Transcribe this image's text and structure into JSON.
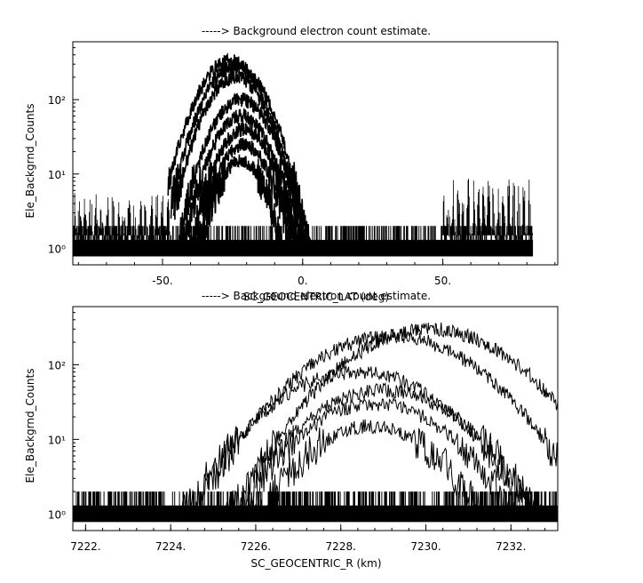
{
  "chart_data": [
    {
      "type": "line",
      "title": "-----> Background electron count estimate.",
      "xlabel": "SC_GEOCENTRIC_LAT (deg)",
      "ylabel": "Ele_Backgrnd_Counts",
      "yscale": "log",
      "xlim": [
        -82,
        91
      ],
      "ylim": [
        0.6,
        600
      ],
      "xticks": [
        -50,
        0,
        50
      ],
      "xtick_labels": [
        "-50.",
        "0.",
        "50."
      ],
      "yticks": [
        1,
        10,
        100
      ],
      "ytick_labels": [
        "10⁰",
        "10¹",
        "10²"
      ],
      "series": [
        {
          "peak": 330,
          "center": -26,
          "width": 24,
          "start": -48,
          "end": 10
        },
        {
          "peak": 280,
          "center": -24,
          "width": 24,
          "start": -47,
          "end": 10
        },
        {
          "peak": 200,
          "center": -24,
          "width": 23,
          "start": -46,
          "end": 9
        },
        {
          "peak": 100,
          "center": -22,
          "width": 23,
          "start": -45,
          "end": 8
        },
        {
          "peak": 60,
          "center": -22,
          "width": 22,
          "start": -44,
          "end": 6
        },
        {
          "peak": 40,
          "center": -21,
          "width": 21,
          "start": -42,
          "end": 4
        },
        {
          "peak": 25,
          "center": -21,
          "width": 20,
          "start": -40,
          "end": 2
        },
        {
          "peak": 15,
          "center": -22,
          "width": 19,
          "start": -38,
          "end": 0
        }
      ],
      "noise_regions": [
        {
          "start": -82,
          "end": -47,
          "level": 5
        },
        {
          "start": 50,
          "end": 82,
          "level": 8
        }
      ],
      "baseline": [
        1,
        2
      ]
    },
    {
      "type": "line",
      "title": "-----> Background electron count estimate.",
      "xlabel": "SC_GEOCENTRIC_R (km)",
      "ylabel": "Ele_Backgrnd_Counts",
      "yscale": "log",
      "xlim": [
        7221.7,
        7233.1
      ],
      "ylim": [
        0.6,
        600
      ],
      "xticks": [
        7222,
        7224,
        7226,
        7228,
        7230,
        7232
      ],
      "xtick_labels": [
        "7222.",
        "7224.",
        "7226.",
        "7228.",
        "7230.",
        "7232."
      ],
      "yticks": [
        1,
        10,
        100
      ],
      "ytick_labels": [
        "10⁰",
        "10¹",
        "10²"
      ],
      "series": [
        {
          "peak": 300,
          "center": 7230.1,
          "width": 4.2,
          "start": 7226.0,
          "end": 7233.1
        },
        {
          "peak": 240,
          "center": 7229.2,
          "width": 4.3,
          "start": 7224.8,
          "end": 7233.1
        },
        {
          "peak": 80,
          "center": 7228.4,
          "width": 4.2,
          "start": 7224.2,
          "end": 7233.1
        },
        {
          "peak": 45,
          "center": 7229.0,
          "width": 4.0,
          "start": 7223.2,
          "end": 7233.1
        },
        {
          "peak": 30,
          "center": 7228.8,
          "width": 3.8,
          "start": 7223.0,
          "end": 7233.0
        },
        {
          "peak": 15,
          "center": 7228.7,
          "width": 3.4,
          "start": 7223.6,
          "end": 7232.6
        }
      ],
      "baseline": [
        1,
        2
      ]
    }
  ]
}
